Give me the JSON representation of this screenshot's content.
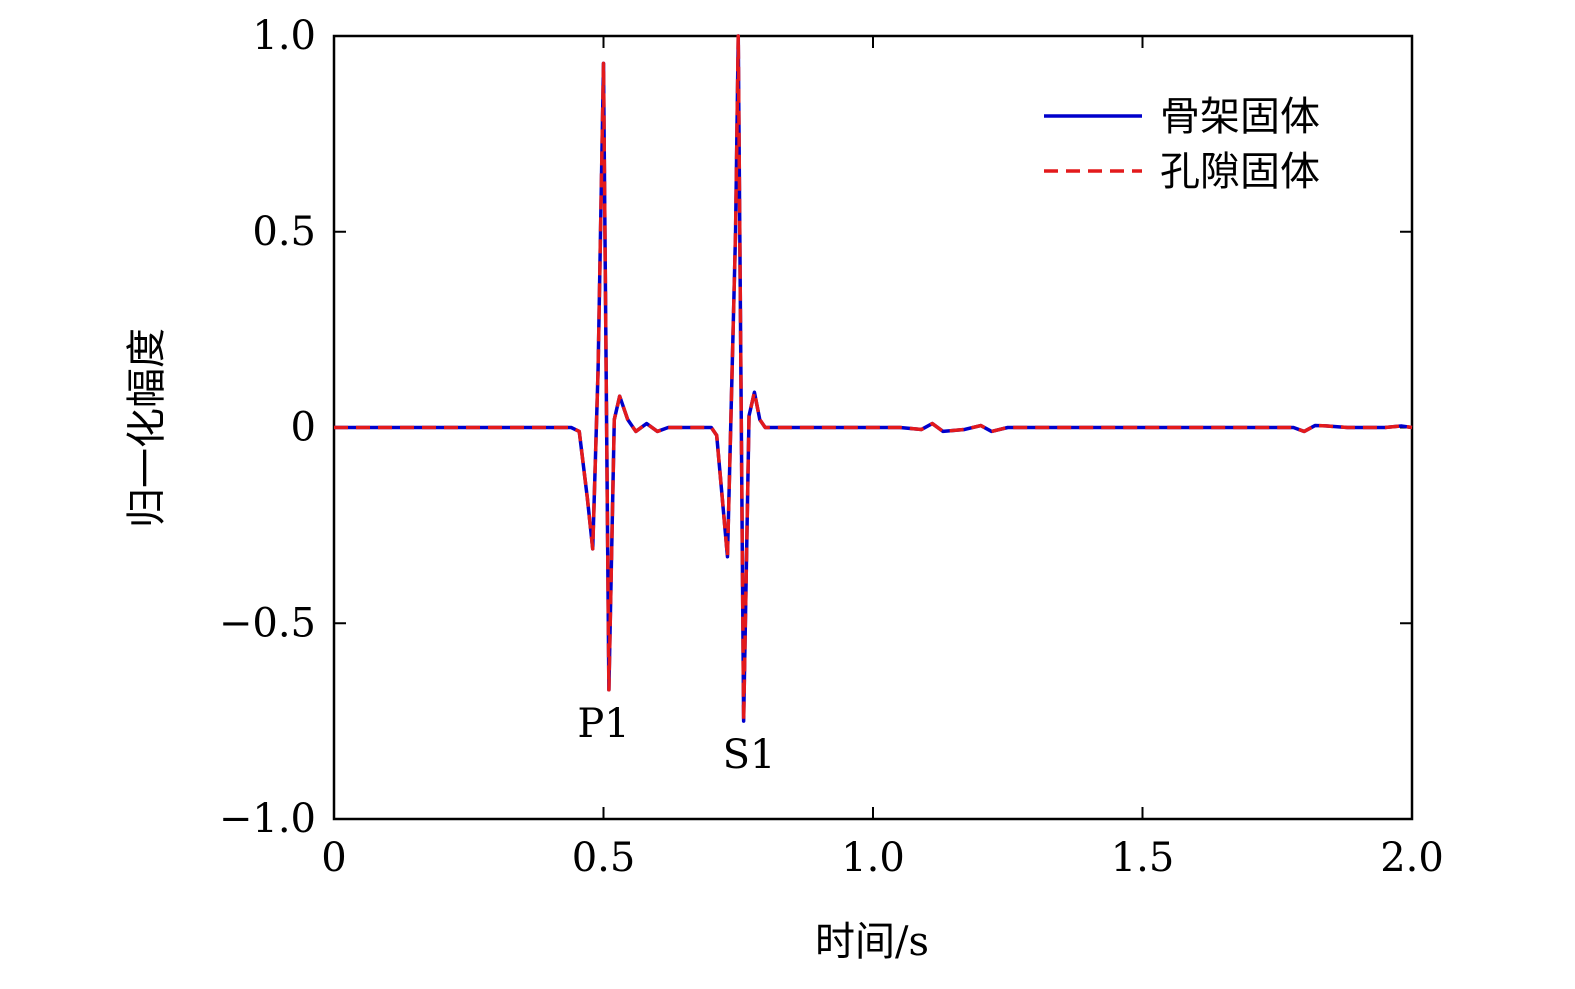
{
  "chart_data": {
    "type": "line",
    "xlabel": "时间/s",
    "ylabel": "归一化幅度",
    "xlim": [
      0,
      2.0
    ],
    "ylim": [
      -1.0,
      1.0
    ],
    "xticks": [
      0,
      0.5,
      1.0,
      1.5,
      2.0
    ],
    "xtick_labels": [
      "0",
      "0.5",
      "1.0",
      "1.5",
      "2.0"
    ],
    "yticks": [
      -1.0,
      -0.5,
      0,
      0.5,
      1.0
    ],
    "ytick_labels": [
      "−1.0",
      "−0.5",
      "0",
      "0.5",
      "1.0"
    ],
    "grid": false,
    "legend_position": "top-right",
    "annotations": [
      {
        "text": "P1",
        "x": 0.5,
        "y": -0.79
      },
      {
        "text": "S1",
        "x": 0.77,
        "y": -0.87
      }
    ],
    "series": [
      {
        "name": "骨架固体",
        "color": "#0000cc",
        "style": "solid",
        "x": [
          0,
          0.4,
          0.44,
          0.455,
          0.47,
          0.48,
          0.49,
          0.5,
          0.51,
          0.52,
          0.53,
          0.545,
          0.56,
          0.58,
          0.6,
          0.62,
          0.7,
          0.71,
          0.73,
          0.745,
          0.75,
          0.76,
          0.77,
          0.78,
          0.79,
          0.8,
          0.83,
          0.9,
          0.95,
          1.05,
          1.09,
          1.11,
          1.13,
          1.17,
          1.2,
          1.22,
          1.25,
          1.6,
          1.7,
          1.78,
          1.8,
          1.82,
          1.84,
          1.88,
          1.95,
          1.98,
          2.0
        ],
        "y": [
          0,
          0,
          0,
          -0.01,
          -0.18,
          -0.31,
          0.15,
          0.93,
          -0.67,
          0.02,
          0.08,
          0.02,
          -0.01,
          0.01,
          -0.01,
          0,
          0,
          -0.02,
          -0.33,
          0.5,
          1.0,
          -0.75,
          0.03,
          0.09,
          0.02,
          0.0,
          0.0,
          0,
          0,
          0,
          -0.005,
          0.01,
          -0.01,
          -0.005,
          0.005,
          -0.01,
          0,
          0,
          0,
          0,
          -0.01,
          0.005,
          0.004,
          0,
          0,
          0.004,
          0
        ]
      },
      {
        "name": "孔隙固体",
        "color": "#e31a1c",
        "style": "dashed",
        "x": [
          0,
          0.4,
          0.44,
          0.455,
          0.47,
          0.48,
          0.49,
          0.5,
          0.51,
          0.52,
          0.53,
          0.545,
          0.56,
          0.58,
          0.6,
          0.62,
          0.7,
          0.71,
          0.73,
          0.745,
          0.75,
          0.76,
          0.77,
          0.78,
          0.79,
          0.8,
          0.83,
          0.9,
          0.95,
          1.05,
          1.09,
          1.11,
          1.13,
          1.17,
          1.2,
          1.22,
          1.25,
          1.6,
          1.7,
          1.78,
          1.8,
          1.82,
          1.84,
          1.88,
          1.95,
          1.98,
          2.0
        ],
        "y": [
          0,
          0,
          0,
          -0.01,
          -0.18,
          -0.31,
          0.15,
          0.93,
          -0.67,
          0.02,
          0.08,
          0.02,
          -0.01,
          0.01,
          -0.01,
          0,
          0,
          -0.02,
          -0.33,
          0.5,
          1.0,
          -0.75,
          0.03,
          0.09,
          0.02,
          0.0,
          0.0,
          0,
          0,
          0,
          -0.005,
          0.01,
          -0.01,
          -0.005,
          0.005,
          -0.01,
          0,
          0,
          0,
          0,
          -0.01,
          0.005,
          0.004,
          0,
          0,
          0.004,
          0
        ]
      }
    ]
  }
}
